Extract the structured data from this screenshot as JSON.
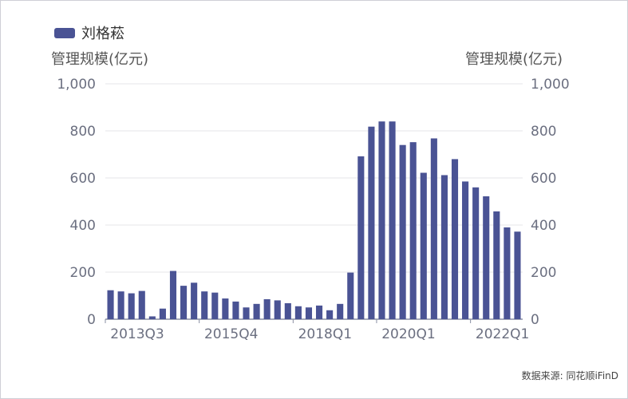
{
  "chart_data": {
    "type": "bar",
    "legend": "刘格菘",
    "ylabel_left": "管理规模(亿元)",
    "ylabel_right": "管理规模(亿元)",
    "ylim": [
      0,
      1000
    ],
    "yticks": [
      "0",
      "200",
      "400",
      "600",
      "800",
      "1,000"
    ],
    "xtick_labels": [
      "2013Q3",
      "2015Q4",
      "2018Q1",
      "2020Q1",
      "2022Q1"
    ],
    "xtick_indices": [
      0,
      9,
      18,
      26,
      35
    ],
    "values": [
      123,
      118,
      110,
      120,
      12,
      45,
      205,
      142,
      155,
      118,
      113,
      88,
      75,
      50,
      65,
      85,
      80,
      68,
      55,
      50,
      58,
      38,
      65,
      198,
      692,
      818,
      840,
      840,
      740,
      752,
      622,
      768,
      612,
      680,
      585,
      560,
      522,
      458,
      390,
      372
    ],
    "color": "#4a5394",
    "grid": true,
    "legend_position": "top-left"
  },
  "source": "数据来源: 同花顺iFinD"
}
